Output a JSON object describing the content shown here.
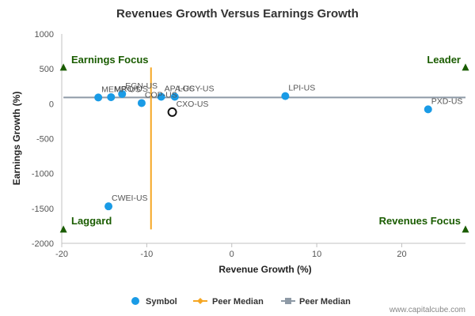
{
  "chart_data": {
    "type": "scatter",
    "title": "Revenues Growth Versus Earnings Growth",
    "xlabel": "Revenue Growth (%)",
    "ylabel": "Earnings Growth (%)",
    "xlim": [
      -20,
      27.5
    ],
    "ylim": [
      -2000,
      1000
    ],
    "xticks": [
      -20,
      -10,
      0,
      10,
      20
    ],
    "yticks": [
      1000,
      500,
      0,
      -500,
      -1000,
      -1500,
      -2000
    ],
    "grid": false,
    "points": [
      {
        "label": "MEMP-US",
        "x": -15.7,
        "y": 90
      },
      {
        "label": "MRO-US",
        "x": -14.2,
        "y": 95
      },
      {
        "label": "EGN-US",
        "x": -12.9,
        "y": 140
      },
      {
        "label": "COP-US",
        "x": -10.6,
        "y": 10
      },
      {
        "label": "APA-US",
        "x": -8.3,
        "y": 100
      },
      {
        "label": "LGCY-US",
        "x": -6.7,
        "y": 100
      },
      {
        "label": "LPI-US",
        "x": 6.3,
        "y": 110
      },
      {
        "label": "PXD-US",
        "x": 23.1,
        "y": -80
      },
      {
        "label": "CWEI-US",
        "x": -14.5,
        "y": -1470
      }
    ],
    "highlight": {
      "label": "CXO-US",
      "x": -7.0,
      "y": -120
    },
    "peer_median_x": -9.5,
    "peer_median_y": 90,
    "peer_median_x_span": [
      -1800,
      520
    ],
    "peer_median_y_span": [
      -19.8,
      27.5
    ],
    "quadrant_markers": [
      [
        -19.8,
        520
      ],
      [
        27.5,
        520
      ],
      [
        -19.8,
        -1800
      ],
      [
        27.5,
        -1800
      ]
    ],
    "quadrants": {
      "top_left": "Earnings Focus",
      "top_right": "Leader",
      "bottom_left": "Laggard",
      "bottom_right": "Revenues Focus"
    },
    "legend": {
      "placement": "bottom",
      "entries": [
        "Symbol",
        "Peer Median",
        "Peer Median"
      ]
    },
    "colors": {
      "points": "#1a9be6",
      "peer_median_x": "#f5a623",
      "peer_median_y": "#8e9aa6",
      "quadrant": "#1a5c00"
    }
  },
  "credit": "www.capitalcube.com"
}
